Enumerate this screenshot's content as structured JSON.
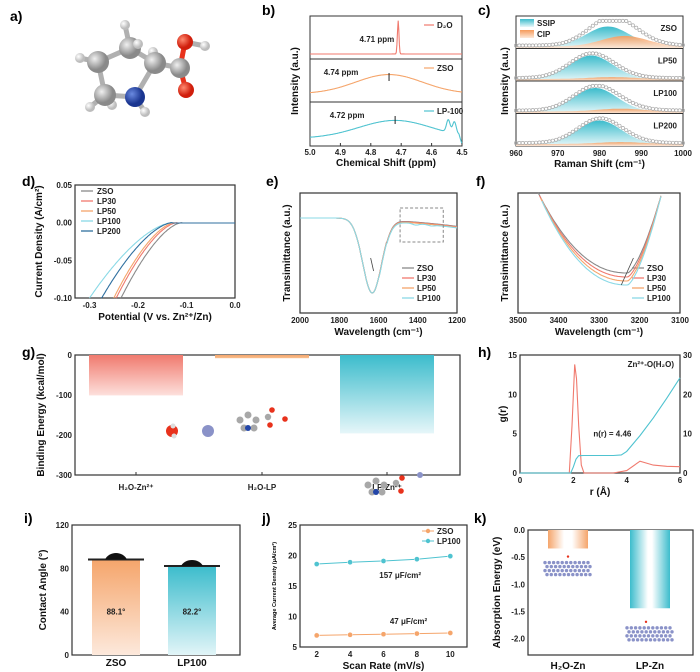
{
  "panels": {
    "a": {
      "label": "a)",
      "caption": "L-proline molecule ball-and-stick model"
    },
    "b": {
      "label": "b)"
    },
    "c": {
      "label": "c)"
    },
    "d": {
      "label": "d)"
    },
    "e": {
      "label": "e)"
    },
    "f": {
      "label": "f)"
    },
    "g": {
      "label": "g)"
    },
    "h": {
      "label": "h)"
    },
    "i": {
      "label": "i)"
    },
    "j": {
      "label": "j)"
    },
    "k": {
      "label": "k)"
    }
  },
  "colors": {
    "red": "#f07a6e",
    "orange": "#f5a56b",
    "cyan": "#4fc3d0",
    "gray": "#8a8a8a",
    "blue": "#2f6f9f",
    "lightcyan": "#8ad9e6",
    "atom_c": "#a8a8a8",
    "atom_o": "#e8321c",
    "atom_n": "#2346a8",
    "atom_zn": "#8a92c8"
  },
  "chart_data": [
    {
      "id": "b",
      "type": "line",
      "xlabel": "Chemical Shift (ppm)",
      "ylabel": "Intensity (a.u.)",
      "xlim": [
        5.0,
        4.5
      ],
      "xticks": [
        "5.0",
        "4.9",
        "4.8",
        "4.7",
        "4.6",
        "4.5"
      ],
      "series": [
        {
          "name": "D₂O",
          "peak": 4.71,
          "annotation": "4.71 ppm"
        },
        {
          "name": "ZSO",
          "peak": 4.74,
          "annotation": "4.74 ppm"
        },
        {
          "name": "LP-100",
          "peak": 4.72,
          "annotation": "4.72 ppm",
          "extra_peaks": [
            4.545,
            4.525
          ]
        }
      ]
    },
    {
      "id": "c",
      "type": "area",
      "xlabel": "Raman Shift (cm⁻¹)",
      "ylabel": "Intensity (a.u.)",
      "xlim": [
        960,
        1000
      ],
      "xticks": [
        "960",
        "970",
        "980",
        "990",
        "1000"
      ],
      "legend": [
        "SSIP",
        "CIP"
      ],
      "series": [
        {
          "name": "ZSO",
          "ssip_center": 982,
          "ssip_height": 0.85,
          "cip_center": 986,
          "cip_height": 0.45
        },
        {
          "name": "LP50",
          "ssip_center": 978,
          "ssip_height": 1.0,
          "cip_center": 983,
          "cip_height": 0.08
        },
        {
          "name": "LP100",
          "ssip_center": 979,
          "ssip_height": 1.0,
          "cip_center": 985,
          "cip_height": 0.12
        },
        {
          "name": "LP200",
          "ssip_center": 980,
          "ssip_height": 1.0,
          "cip_center": 985,
          "cip_height": 0.08
        }
      ]
    },
    {
      "id": "d",
      "type": "line",
      "xlabel": "Potential (V vs. Zn²⁺/Zn)",
      "ylabel": "Current Density (A/cm²)",
      "xlim": [
        -0.33,
        0.0
      ],
      "ylim": [
        -0.1,
        0.05
      ],
      "xticks": [
        "-0.3",
        "-0.2",
        "-0.1",
        "0.0"
      ],
      "yticks": [
        "0.05",
        "0.00",
        "-0.05",
        "-0.10"
      ],
      "series": [
        {
          "name": "ZSO",
          "onset": -0.11,
          "x_at_min": -0.235
        },
        {
          "name": "LP30",
          "onset": -0.12,
          "x_at_min": -0.245
        },
        {
          "name": "LP50",
          "onset": -0.125,
          "x_at_min": -0.25
        },
        {
          "name": "LP100",
          "onset": -0.13,
          "x_at_min": -0.3
        },
        {
          "name": "LP200",
          "onset": -0.13,
          "x_at_min": -0.275
        }
      ]
    },
    {
      "id": "e",
      "type": "line",
      "xlabel": "Wavelength (cm⁻¹)",
      "ylabel": "Transimittance (a.u.)",
      "xlim": [
        2000,
        1200
      ],
      "xticks": [
        "2000",
        "1800",
        "1600",
        "1400",
        "1200"
      ],
      "dip": 1630,
      "series": [
        {
          "name": "ZSO"
        },
        {
          "name": "LP30"
        },
        {
          "name": "LP50"
        },
        {
          "name": "LP100"
        }
      ]
    },
    {
      "id": "f",
      "type": "line",
      "xlabel": "Wavelength (cm⁻¹)",
      "ylabel": "Transimittance (a.u.)",
      "xlim": [
        3500,
        3100
      ],
      "xticks": [
        "3500",
        "3400",
        "3300",
        "3200",
        "3100"
      ],
      "series": [
        {
          "name": "ZSO"
        },
        {
          "name": "LP30"
        },
        {
          "name": "LP50"
        },
        {
          "name": "LP100"
        }
      ]
    },
    {
      "id": "g",
      "type": "bar",
      "ylabel": "Binding Energy (kcal/mol)",
      "ylim": [
        -300,
        0
      ],
      "yticks": [
        "0",
        "-100",
        "-200",
        "-300"
      ],
      "categories": [
        "H₂O-Zn²⁺",
        "H₂O-LP",
        "LP-Zn²⁺"
      ],
      "values": [
        -101,
        -8,
        -196
      ]
    },
    {
      "id": "h",
      "type": "line",
      "xlabel": "r (Å)",
      "ylabel": "g(r)",
      "y2label": "n(r)",
      "xlim": [
        0,
        6
      ],
      "ylim": [
        0,
        15
      ],
      "y2lim": [
        0,
        30
      ],
      "xticks": [
        "0",
        "2",
        "4",
        "6"
      ],
      "yticks": [
        "0",
        "5",
        "10",
        "15"
      ],
      "y2ticks": [
        "0",
        "10",
        "20",
        "30"
      ],
      "legend": "Zn²⁺-O(H₂O)",
      "annotation": "n(r) = 4.46",
      "gr": {
        "x": [
          0,
          1.85,
          1.95,
          2.05,
          2.12,
          2.2,
          2.3,
          2.4,
          3.5,
          4.0,
          4.5,
          5.0,
          5.5,
          6.0
        ],
        "y": [
          0,
          0,
          6,
          13.8,
          12,
          6,
          1,
          0,
          0,
          0.3,
          1.5,
          1.0,
          0.85,
          0.8
        ]
      },
      "nr": {
        "x": [
          0,
          1.9,
          2.0,
          2.1,
          2.2,
          2.4,
          3.0,
          3.5,
          3.8,
          4.0,
          4.5,
          5.0,
          5.5,
          6.0
        ],
        "y": [
          0,
          0,
          1.5,
          3.5,
          4.4,
          4.46,
          4.46,
          4.46,
          4.6,
          5.5,
          9.5,
          14,
          19,
          24.2
        ]
      }
    },
    {
      "id": "i",
      "type": "bar",
      "ylabel": "Contact Angle (°)",
      "ylim": [
        0,
        120
      ],
      "yticks": [
        "0",
        "40",
        "80",
        "120"
      ],
      "categories": [
        "ZSO",
        "LP100"
      ],
      "values": [
        88.1,
        82.2
      ],
      "data_labels": [
        "88.1°",
        "82.2°"
      ]
    },
    {
      "id": "j",
      "type": "line",
      "xlabel": "Scan Rate (mV/s)",
      "ylabel": "Average Current Density (μA/cm²)",
      "xlim": [
        1,
        11
      ],
      "ylim": [
        5,
        25
      ],
      "xticks": [
        "2",
        "4",
        "6",
        "8",
        "10"
      ],
      "yticks": [
        "5",
        "10",
        "15",
        "20",
        "25"
      ],
      "x": [
        2,
        4,
        6,
        8,
        10
      ],
      "series": [
        {
          "name": "ZSO",
          "values": [
            6.9,
            7.0,
            7.1,
            7.2,
            7.3
          ],
          "annotation": "47 μF/cm²"
        },
        {
          "name": "LP100",
          "values": [
            18.6,
            18.9,
            19.1,
            19.4,
            19.9
          ],
          "annotation": "157 μF/cm²"
        }
      ]
    },
    {
      "id": "k",
      "type": "bar",
      "ylabel": "Absorption Energy (eV)",
      "ylim": [
        -2.3,
        0
      ],
      "yticks": [
        "0.0",
        "-0.5",
        "-1.0",
        "-1.5",
        "-2.0"
      ],
      "categories": [
        "H₂O-Zn",
        "LP-Zn"
      ],
      "values": [
        -0.34,
        -1.44
      ]
    }
  ]
}
